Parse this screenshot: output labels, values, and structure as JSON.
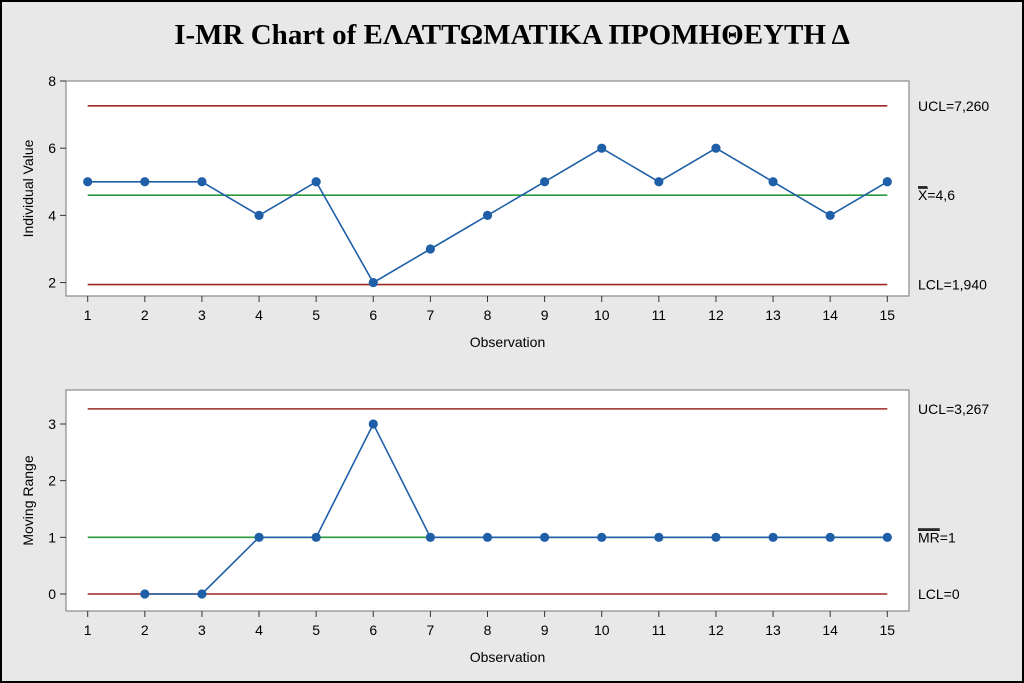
{
  "chart_data": {
    "type": "line",
    "title": "I-MR Chart of ΕΛΑΤΤΩΜΑΤΙΚΑ ΠΡΟΜΗΘΕΥΤΗ Δ",
    "colors": {
      "background": "#e8e8e8",
      "series": "#1f5fa8",
      "control_limit": "#9c2a24",
      "center_line": "#2a9a3a"
    },
    "panels": [
      {
        "name": "individual",
        "ylabel": "Individual Value",
        "xlabel": "Observation",
        "ylim": [
          1.6,
          8
        ],
        "yticks": [
          2,
          4,
          6,
          8
        ],
        "xticks": [
          1,
          2,
          3,
          4,
          5,
          6,
          7,
          8,
          9,
          10,
          11,
          12,
          13,
          14,
          15
        ],
        "x": [
          1,
          2,
          3,
          4,
          5,
          6,
          7,
          8,
          9,
          10,
          11,
          12,
          13,
          14,
          15
        ],
        "values": [
          5,
          5,
          5,
          4,
          5,
          2,
          3,
          4,
          5,
          6,
          5,
          6,
          5,
          4,
          5
        ],
        "ucl": {
          "value": 7.26,
          "label": "UCL=7,260"
        },
        "center": {
          "value": 4.6,
          "label_bar": "X",
          "label_rest": "=4,6"
        },
        "lcl": {
          "value": 1.94,
          "label": "LCL=1,940"
        }
      },
      {
        "name": "moving-range",
        "ylabel": "Moving Range",
        "xlabel": "Observation",
        "ylim": [
          -0.3,
          3.6
        ],
        "yticks": [
          0,
          1,
          2,
          3
        ],
        "xticks": [
          1,
          2,
          3,
          4,
          5,
          6,
          7,
          8,
          9,
          10,
          11,
          12,
          13,
          14,
          15
        ],
        "x": [
          2,
          3,
          4,
          5,
          6,
          7,
          8,
          9,
          10,
          11,
          12,
          13,
          14,
          15
        ],
        "values": [
          0,
          0,
          1,
          1,
          3,
          1,
          1,
          1,
          1,
          1,
          1,
          1,
          1,
          1
        ],
        "ucl": {
          "value": 3.267,
          "label": "UCL=3,267"
        },
        "center": {
          "value": 1,
          "label_bar": "MR",
          "label_rest": "=1"
        },
        "lcl": {
          "value": 0,
          "label": "LCL=0"
        }
      }
    ]
  }
}
